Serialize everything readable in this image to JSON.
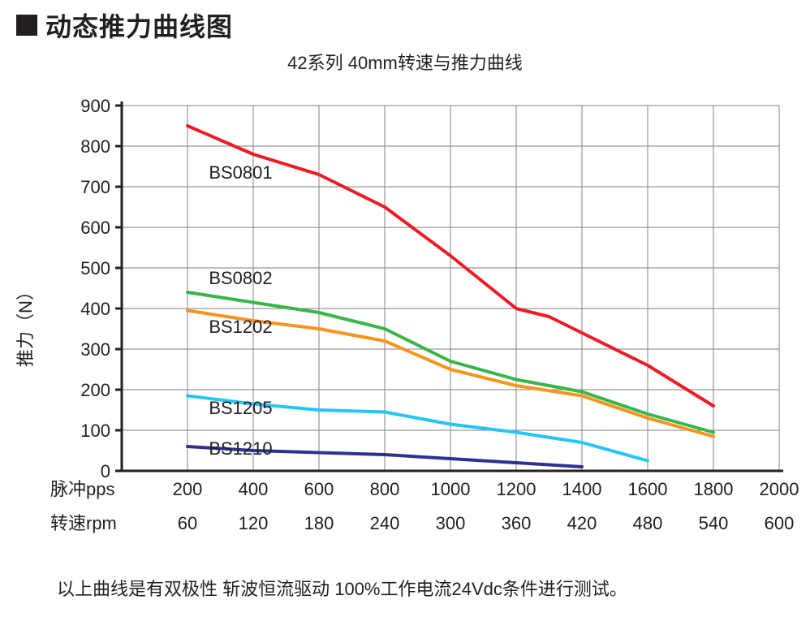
{
  "header": {
    "title": "动态推力曲线图"
  },
  "subtitle": "42系列 40mm转速与推力曲线",
  "chart": {
    "type": "line",
    "background_color": "#ffffff",
    "grid_color": "#808285",
    "axis_color": "#231f20",
    "axis_width": 3,
    "grid_width": 1,
    "line_width": 4,
    "yaxis": {
      "label": "推力（N）",
      "min": 0,
      "max": 900,
      "ticks": [
        0,
        100,
        200,
        300,
        400,
        500,
        600,
        700,
        800,
        900
      ],
      "label_fontsize": 22,
      "tick_fontsize": 22
    },
    "xaxis": {
      "min": 0,
      "max": 2000,
      "ticks": [
        200,
        400,
        600,
        800,
        1000,
        1200,
        1400,
        1600,
        1800,
        2000
      ],
      "rows": [
        {
          "label": "脉冲pps",
          "values": [
            "200",
            "400",
            "600",
            "800",
            "1000",
            "1200",
            "1400",
            "1600",
            "1800",
            "2000"
          ]
        },
        {
          "label": "转速rpm",
          "values": [
            "60",
            "120",
            "180",
            "240",
            "300",
            "360",
            "420",
            "480",
            "540",
            "600"
          ]
        }
      ],
      "label_fontsize": 22,
      "tick_fontsize": 22
    },
    "series": [
      {
        "name": "BS0801",
        "color": "#ed1c24",
        "label_x": 265,
        "label_y": 720,
        "points": [
          [
            200,
            850
          ],
          [
            400,
            780
          ],
          [
            600,
            730
          ],
          [
            800,
            650
          ],
          [
            1000,
            530
          ],
          [
            1200,
            400
          ],
          [
            1300,
            380
          ],
          [
            1400,
            340
          ],
          [
            1600,
            260
          ],
          [
            1800,
            160
          ]
        ]
      },
      {
        "name": "BS0802",
        "color": "#39b54a",
        "label_x": 265,
        "label_y": 460,
        "points": [
          [
            200,
            440
          ],
          [
            400,
            415
          ],
          [
            600,
            390
          ],
          [
            800,
            350
          ],
          [
            1000,
            270
          ],
          [
            1200,
            225
          ],
          [
            1400,
            195
          ],
          [
            1600,
            140
          ],
          [
            1800,
            95
          ]
        ]
      },
      {
        "name": "BS1202",
        "color": "#f7941d",
        "label_x": 265,
        "label_y": 340,
        "points": [
          [
            200,
            395
          ],
          [
            400,
            370
          ],
          [
            600,
            350
          ],
          [
            800,
            320
          ],
          [
            1000,
            250
          ],
          [
            1200,
            210
          ],
          [
            1400,
            185
          ],
          [
            1600,
            130
          ],
          [
            1800,
            85
          ]
        ]
      },
      {
        "name": "BS1205",
        "color": "#27c4f4",
        "label_x": 265,
        "label_y": 140,
        "points": [
          [
            200,
            185
          ],
          [
            400,
            165
          ],
          [
            600,
            150
          ],
          [
            800,
            145
          ],
          [
            1000,
            115
          ],
          [
            1200,
            95
          ],
          [
            1400,
            70
          ],
          [
            1600,
            25
          ]
        ]
      },
      {
        "name": "BS1210",
        "color": "#2e3192",
        "label_x": 265,
        "label_y": 40,
        "points": [
          [
            200,
            60
          ],
          [
            400,
            50
          ],
          [
            600,
            45
          ],
          [
            800,
            40
          ],
          [
            1000,
            30
          ],
          [
            1200,
            20
          ],
          [
            1400,
            10
          ]
        ]
      }
    ]
  },
  "footnote": "以上曲线是有双极性 斩波恒流驱动 100%工作电流24Vdc条件进行测试。"
}
